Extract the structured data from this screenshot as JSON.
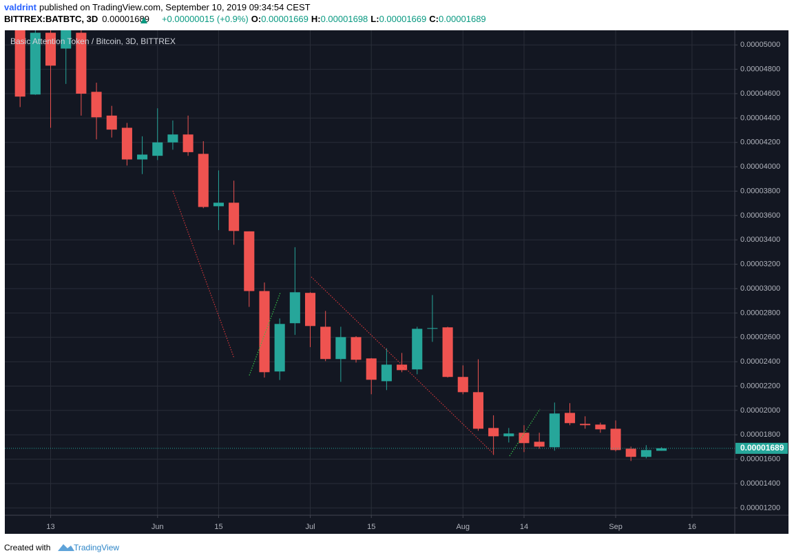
{
  "header": {
    "author": "valdrint",
    "published": "published on TradingView.com, September 10, 2019 09:34:54 CEST",
    "symbol": "BITTREX:BATBTC, 3D",
    "change": "+0.00000015 (+0.9%)",
    "open_label": "O:",
    "high_label": "H:",
    "low_label": "L:",
    "close_label": "C:"
  },
  "footer": {
    "created": "Created with",
    "brand": "TradingView"
  },
  "chart_data": {
    "type": "candlestick",
    "title": "Basic Attention Token / Bitcoin, 3D, BITTREX",
    "open": [
      5.12e-05,
      4.593e-05,
      5.1e-05,
      4.97e-05,
      5.1e-05,
      4.615e-05,
      4.42e-05,
      4.32e-05,
      4.06e-05,
      4.09e-05,
      4.2e-05,
      4.265e-05,
      4.106e-05,
      3.676e-05,
      3.705e-05,
      3.47e-05,
      2.98e-05,
      2.32e-05,
      2.716e-05,
      2.965e-05,
      2.687e-05,
      2.422e-05,
      2.602e-05,
      2.427e-05,
      2.24e-05,
      2.376e-05,
      2.337e-05,
      2.67e-05,
      2.682e-05,
      2.275e-05,
      2.15e-05,
      1.856e-05,
      1.788e-05,
      1.817e-05,
      1.743e-05,
      1.698e-05,
      1.98e-05,
      1.89e-05,
      1.884e-05,
      1.85e-05,
      1.686e-05,
      1.619e-05,
      1.669e-05
    ],
    "high": [
      5.15e-05,
      5.2e-05,
      5.15e-05,
      5.2e-05,
      5.15e-05,
      4.69e-05,
      4.5e-05,
      4.36e-05,
      4.25e-05,
      4.48e-05,
      4.38e-05,
      4.42e-05,
      4.21e-05,
      3.97e-05,
      3.886e-05,
      3.47e-05,
      3.05e-05,
      2.755e-05,
      3.34e-05,
      2.97e-05,
      2.817e-05,
      2.687e-05,
      2.61e-05,
      2.43e-05,
      2.51e-05,
      2.472e-05,
      2.687e-05,
      2.947e-05,
      2.687e-05,
      2.37e-05,
      2.42e-05,
      1.96e-05,
      1.856e-05,
      1.879e-05,
      1.817e-05,
      2.065e-05,
      2.06e-05,
      1.952e-05,
      1.9e-05,
      1.918e-05,
      1.703e-05,
      1.715e-05,
      1.698e-05
    ],
    "low": [
      4.49e-05,
      4.59e-05,
      4.32e-05,
      4.68e-05,
      4.42e-05,
      4.225e-05,
      4.24e-05,
      4.01e-05,
      3.94e-05,
      4.055e-05,
      4.14e-05,
      4.09e-05,
      3.66e-05,
      3.48e-05,
      3.36e-05,
      2.85e-05,
      2.27e-05,
      2.25e-05,
      2.62e-05,
      2.52e-05,
      2.405e-05,
      2.235e-05,
      2.393e-05,
      2.133e-05,
      2.167e-05,
      2.314e-05,
      2.297e-05,
      2.563e-05,
      2.27e-05,
      2.133e-05,
      1.833e-05,
      1.635e-05,
      1.737e-05,
      1.658e-05,
      1.686e-05,
      1.67e-05,
      1.879e-05,
      1.85e-05,
      1.817e-05,
      1.664e-05,
      1.585e-05,
      1.607e-05,
      1.669e-05
    ],
    "close": [
      4.576e-05,
      5.1e-05,
      4.83e-05,
      5.12e-05,
      4.6e-05,
      4.406e-05,
      4.305e-05,
      4.06e-05,
      4.1e-05,
      4.2e-05,
      4.265e-05,
      4.12e-05,
      3.67e-05,
      3.705e-05,
      3.473e-05,
      2.98e-05,
      2.314e-05,
      2.71e-05,
      2.97e-05,
      2.693e-05,
      2.422e-05,
      2.602e-05,
      2.416e-05,
      2.252e-05,
      2.376e-05,
      2.331e-05,
      2.67e-05,
      2.676e-05,
      2.275e-05,
      2.15e-05,
      1.85e-05,
      1.788e-05,
      1.811e-05,
      1.732e-05,
      1.703e-05,
      1.975e-05,
      1.896e-05,
      1.879e-05,
      1.845e-05,
      1.675e-05,
      1.619e-05,
      1.675e-05,
      1.689e-05
    ],
    "up_color": "#26a69a",
    "down_color": "#ef5350",
    "background": "#131722",
    "grid": true,
    "grid_color": "#2a2e39",
    "xlim": [
      -1,
      46.8
    ],
    "xticks": [
      {
        "value": 2,
        "label": "13"
      },
      {
        "value": 9,
        "label": "Jun"
      },
      {
        "value": 13,
        "label": "15"
      },
      {
        "value": 19,
        "label": "Jul"
      },
      {
        "value": 23,
        "label": "15"
      },
      {
        "value": 29,
        "label": "Aug"
      },
      {
        "value": 33,
        "label": "14"
      },
      {
        "value": 39,
        "label": "Sep"
      },
      {
        "value": 44,
        "label": "16"
      }
    ],
    "ylim": [
      1.14e-05,
      5.12e-05
    ],
    "yticks": [
      {
        "value": 1.2e-05,
        "label": "0.00001200"
      },
      {
        "value": 1.4e-05,
        "label": "0.00001400"
      },
      {
        "value": 1.6e-05,
        "label": "0.00001600"
      },
      {
        "value": 1.8e-05,
        "label": "0.00001800"
      },
      {
        "value": 2e-05,
        "label": "0.00002000"
      },
      {
        "value": 2.2e-05,
        "label": "0.00002200"
      },
      {
        "value": 2.4e-05,
        "label": "0.00002400"
      },
      {
        "value": 2.6e-05,
        "label": "0.00002600"
      },
      {
        "value": 2.8e-05,
        "label": "0.00002800"
      },
      {
        "value": 3e-05,
        "label": "0.00003000"
      },
      {
        "value": 3.2e-05,
        "label": "0.00003200"
      },
      {
        "value": 3.4e-05,
        "label": "0.00003400"
      },
      {
        "value": 3.6e-05,
        "label": "0.00003600"
      },
      {
        "value": 3.8e-05,
        "label": "0.00003800"
      },
      {
        "value": 4e-05,
        "label": "0.00004000"
      },
      {
        "value": 4.2e-05,
        "label": "0.00004200"
      },
      {
        "value": 4.4e-05,
        "label": "0.00004400"
      },
      {
        "value": 4.6e-05,
        "label": "0.00004600"
      },
      {
        "value": 4.8e-05,
        "label": "0.00004800"
      },
      {
        "value": 5e-05,
        "label": "0.00005000"
      }
    ]
  }
}
